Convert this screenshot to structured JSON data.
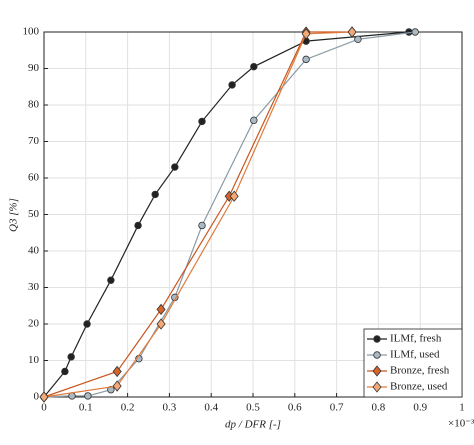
{
  "chart_data": {
    "type": "line",
    "ylabel": "Q3 [%]",
    "xlabel": "dp / DFR [-]",
    "xmultiplier": "×10⁻³",
    "xlim": [
      0,
      1
    ],
    "xticks": [
      0,
      0.1,
      0.2,
      0.3,
      0.4,
      0.5,
      0.6,
      0.7,
      0.8,
      0.9,
      1
    ],
    "ylim": [
      0,
      100
    ],
    "yticks": [
      0,
      10,
      20,
      30,
      40,
      50,
      60,
      70,
      80,
      90,
      100
    ],
    "grid": true,
    "legend": "lower right",
    "series": [
      {
        "name": "ILMf, fresh",
        "color": "#222222",
        "marker": "circle",
        "fill": "#222222",
        "x": [
          0,
          0.05,
          0.065,
          0.103,
          0.16,
          0.225,
          0.266,
          0.313,
          0.378,
          0.45,
          0.502,
          0.627,
          0.873
        ],
        "values": [
          0,
          7,
          11,
          20,
          32,
          47,
          55.5,
          63,
          75.5,
          85.5,
          90.5,
          97.5,
          100
        ]
      },
      {
        "name": "ILMf, used",
        "color": "#8a9aa4",
        "marker": "circle",
        "fill": "#a9bac4",
        "x": [
          0,
          0.067,
          0.105,
          0.16,
          0.227,
          0.313,
          0.378,
          0.502,
          0.627,
          0.751,
          0.888
        ],
        "values": [
          0,
          0.3,
          0.3,
          2,
          10.5,
          27.3,
          47,
          75.8,
          92.5,
          98,
          100
        ]
      },
      {
        "name": "Bronze, fresh",
        "color": "#c8561e",
        "marker": "diamond",
        "fill": "#d5632a",
        "x": [
          0,
          0.175,
          0.28,
          0.443,
          0.627,
          0.737
        ],
        "values": [
          0,
          7,
          24,
          55,
          100,
          100
        ]
      },
      {
        "name": "Bronze, used",
        "color": "#e07a3c",
        "marker": "diamond",
        "fill": "#f3a877",
        "x": [
          0,
          0.175,
          0.28,
          0.455,
          0.627,
          0.737
        ],
        "values": [
          0,
          3,
          20,
          55,
          99.5,
          100
        ]
      }
    ]
  }
}
